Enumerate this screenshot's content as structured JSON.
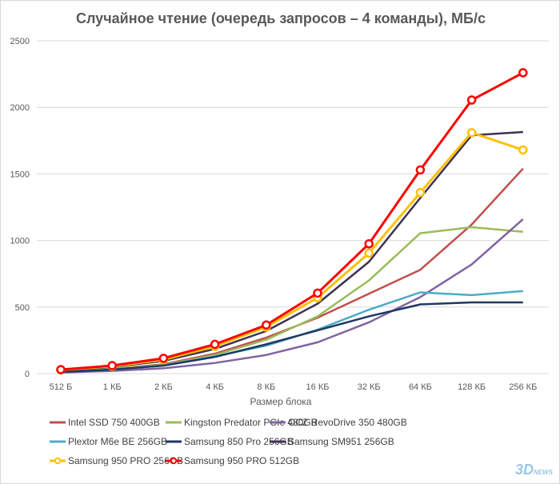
{
  "chart_data": {
    "type": "line",
    "title": "Случайное чтение (очередь запросов – 4 команды), МБ/с",
    "xlabel": "Размер блока",
    "ylabel": "",
    "ylim": [
      0,
      2500
    ],
    "yticks": [
      0,
      500,
      1000,
      1500,
      2000,
      2500
    ],
    "grid": true,
    "legend_placement": "bottom",
    "categories": [
      "512 Б",
      "1 КБ",
      "2 КБ",
      "4 КБ",
      "8 КБ",
      "16 КБ",
      "32 КБ",
      "64 КБ",
      "128 КБ",
      "256 КБ"
    ],
    "series": [
      {
        "name": "Intel SSD 750 400GB",
        "color": "#c0504d",
        "markers": false,
        "values": [
          15,
          35,
          70,
          150,
          270,
          420,
          600,
          780,
          1120,
          1540
        ]
      },
      {
        "name": "Kingston Predator PCIe 480GB",
        "color": "#9bbb59",
        "markers": false,
        "values": [
          15,
          35,
          65,
          140,
          255,
          430,
          700,
          1055,
          1100,
          1065
        ]
      },
      {
        "name": "OCZ RevoDrive 350 480GB",
        "color": "#8064a2",
        "markers": false,
        "values": [
          8,
          20,
          40,
          80,
          140,
          235,
          385,
          575,
          820,
          1160
        ]
      },
      {
        "name": "Plextor M6e BE 256GB",
        "color": "#4bacc6",
        "markers": false,
        "values": [
          12,
          30,
          60,
          130,
          210,
          330,
          480,
          610,
          590,
          620
        ]
      },
      {
        "name": "Samsung 850 Pro 256GB",
        "color": "#1f3864",
        "markers": false,
        "values": [
          12,
          30,
          60,
          125,
          220,
          325,
          430,
          520,
          535,
          535
        ]
      },
      {
        "name": "Samsung SM951 256GB",
        "color": "#403151",
        "markers": false,
        "values": [
          25,
          50,
          95,
          185,
          320,
          525,
          840,
          1320,
          1790,
          1815
        ]
      },
      {
        "name": "Samsung 950 PRO 256GB",
        "color": "#ffc000",
        "markers": true,
        "values": [
          28,
          55,
          105,
          205,
          350,
          570,
          905,
          1360,
          1810,
          1680
        ]
      },
      {
        "name": "Samsung 950 PRO 512GB",
        "color": "#ff0000",
        "markers": true,
        "values": [
          30,
          60,
          115,
          220,
          365,
          605,
          975,
          1530,
          2055,
          2260
        ]
      }
    ]
  },
  "watermark": {
    "text": "3DNews",
    "sub": "Daily Digital Digest"
  }
}
